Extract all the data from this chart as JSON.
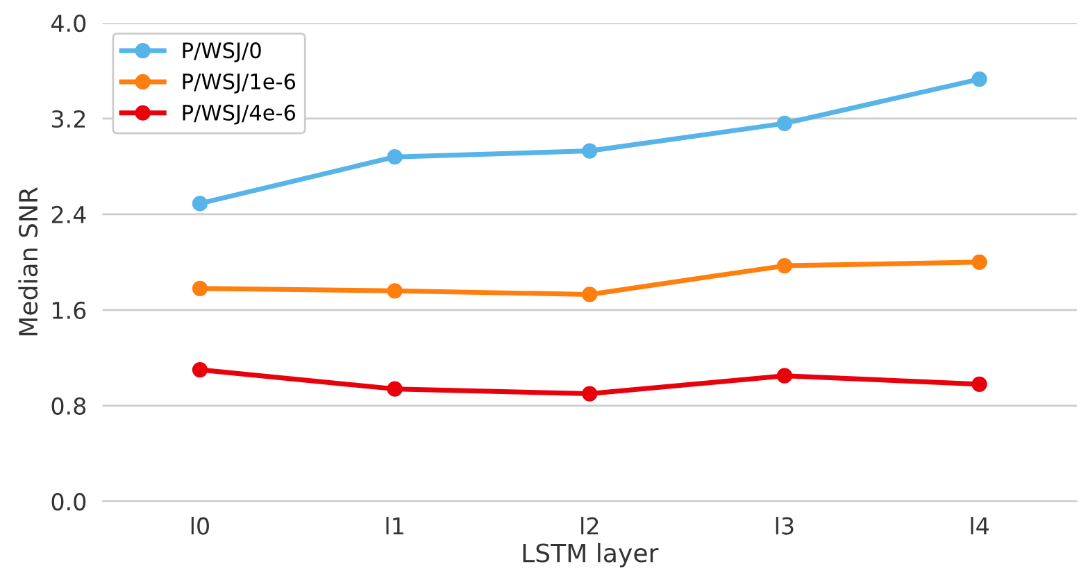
{
  "chart_data": {
    "type": "line",
    "xlabel": "LSTM layer",
    "ylabel": "Median SNR",
    "categories": [
      "l0",
      "l1",
      "l2",
      "l3",
      "l4"
    ],
    "series": [
      {
        "name": "P/WSJ/0",
        "color": "#56b4e9",
        "values": [
          2.49,
          2.88,
          2.93,
          3.16,
          3.53
        ]
      },
      {
        "name": "P/WSJ/1e-6",
        "color": "#ff7f0e",
        "values": [
          1.78,
          1.76,
          1.73,
          1.97,
          2.0
        ]
      },
      {
        "name": "P/WSJ/4e-6",
        "color": "#e8000b",
        "values": [
          1.1,
          0.94,
          0.9,
          1.05,
          0.98
        ]
      }
    ],
    "ylim": [
      0,
      4
    ],
    "yticks": [
      {
        "value": 0,
        "label": "0.0"
      },
      {
        "value": 0.8,
        "label": "0.8"
      },
      {
        "value": 1.6,
        "label": "1.6"
      },
      {
        "value": 2.4,
        "label": "2.4"
      },
      {
        "value": 3.2,
        "label": "3.2"
      },
      {
        "value": 4,
        "label": "4.0"
      }
    ],
    "grid": "y",
    "legend": "top left",
    "marker": "circle",
    "line_style": "solid"
  }
}
